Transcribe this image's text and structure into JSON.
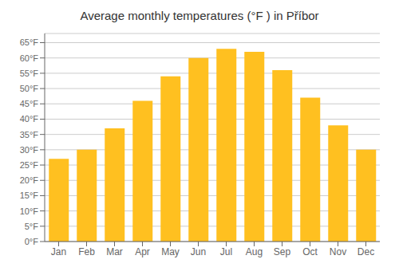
{
  "chart_data": {
    "type": "bar",
    "title": "Average monthly temperatures (°F ) in Příbor",
    "categories": [
      "Jan",
      "Feb",
      "Mar",
      "Apr",
      "May",
      "Jun",
      "Jul",
      "Aug",
      "Sep",
      "Oct",
      "Nov",
      "Dec"
    ],
    "values": [
      27,
      30,
      37,
      46,
      54,
      60,
      63,
      62,
      56,
      47,
      38,
      30
    ],
    "color": "#FFC020",
    "ylim": [
      0,
      68
    ],
    "yticks": [
      {
        "value": 0,
        "label": "0°F"
      },
      {
        "value": 5,
        "label": "5°F"
      },
      {
        "value": 10,
        "label": "10°F"
      },
      {
        "value": 15,
        "label": "15°F"
      },
      {
        "value": 20,
        "label": "20°F"
      },
      {
        "value": 25,
        "label": "25°F"
      },
      {
        "value": 30,
        "label": "30°F"
      },
      {
        "value": 35,
        "label": "35°F"
      },
      {
        "value": 40,
        "label": "40°F"
      },
      {
        "value": 45,
        "label": "45°F"
      },
      {
        "value": 50,
        "label": "50°F"
      },
      {
        "value": 55,
        "label": "55°F"
      },
      {
        "value": 60,
        "label": "60°F"
      },
      {
        "value": 65,
        "label": "65°F"
      }
    ],
    "grid": true
  }
}
